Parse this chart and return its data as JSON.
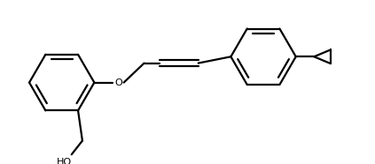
{
  "background": "#ffffff",
  "line_color": "#000000",
  "line_width": 1.6,
  "fig_width": 4.23,
  "fig_height": 1.86,
  "label_HO": "HO",
  "label_O": "O",
  "dpi": 100
}
